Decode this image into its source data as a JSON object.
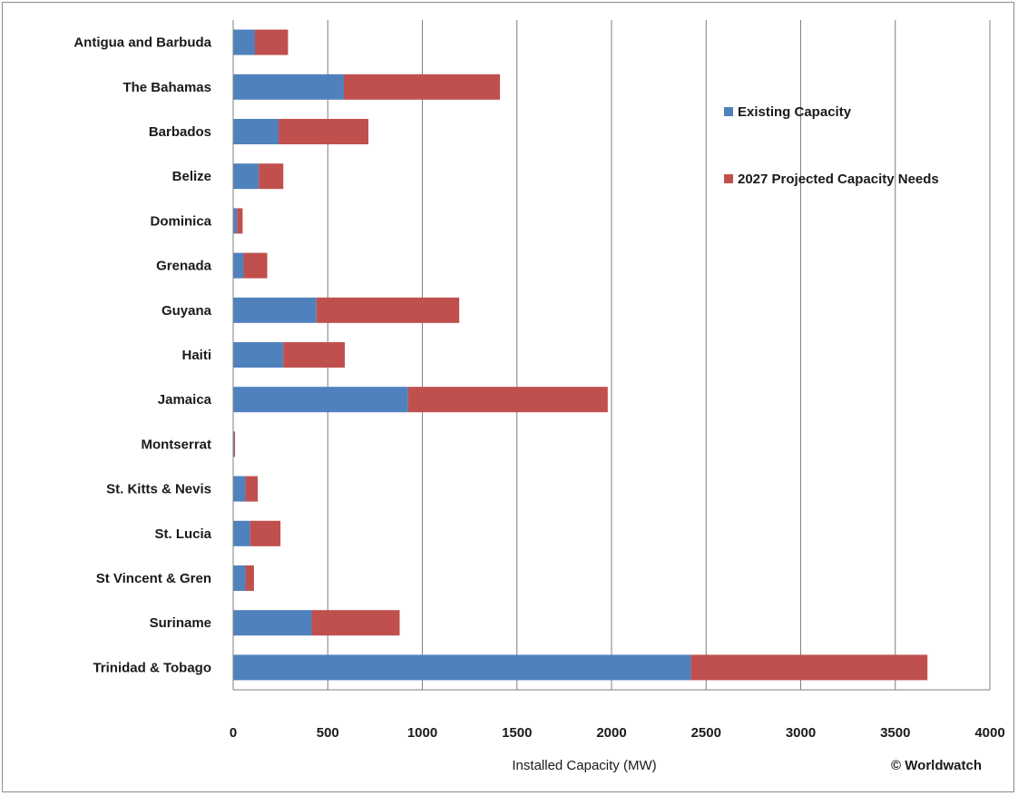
{
  "chart_data": {
    "type": "bar",
    "orientation": "horizontal",
    "stacked": true,
    "categories": [
      "Antigua and Barbuda",
      "The Bahamas",
      "Barbados",
      "Belize",
      "Dominica",
      "Grenada",
      "Guyana",
      "Haiti",
      "Jamaica",
      "Montserrat",
      "St. Kitts & Nevis",
      "St. Lucia",
      "St Vincent & Gren",
      "Suriname",
      "Trinidad & Tobago"
    ],
    "series": [
      {
        "name": "Existing Capacity",
        "color": "#4f81bd",
        "values": [
          115,
          585,
          240,
          135,
          20,
          55,
          440,
          265,
          925,
          5,
          65,
          90,
          65,
          415,
          2420
        ]
      },
      {
        "name": "2027 Projected Capacity Needs",
        "color": "#c0504d",
        "values": [
          175,
          825,
          475,
          130,
          30,
          125,
          755,
          325,
          1055,
          5,
          65,
          160,
          45,
          465,
          1250
        ]
      }
    ],
    "title": "",
    "xlabel": "Installed Capacity (MW)",
    "ylabel": "",
    "xlim": [
      0,
      4000
    ],
    "xticks": [
      "0",
      "500",
      "1000",
      "1500",
      "2000",
      "2500",
      "3000",
      "3500",
      "4000"
    ],
    "grid": "vertical",
    "legend_position": "right",
    "credit": "© Worldwatch"
  }
}
